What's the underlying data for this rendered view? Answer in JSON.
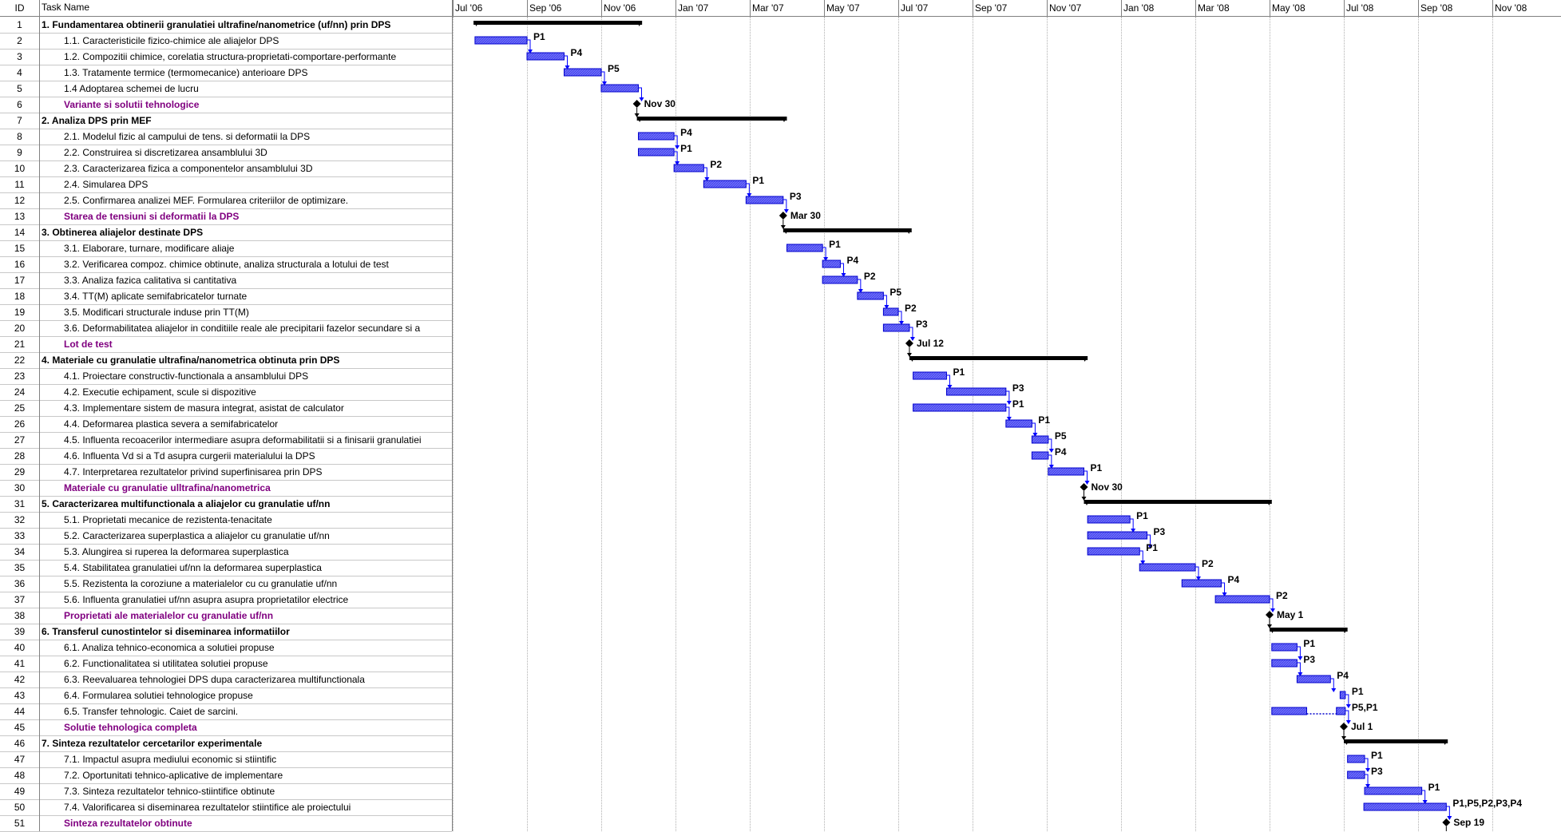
{
  "columns": {
    "id": "ID",
    "name": "Task Name"
  },
  "timeline": {
    "months": [
      "Jul '06",
      "Sep '06",
      "Nov '06",
      "Jan '07",
      "Mar '07",
      "May '07",
      "Jul '07",
      "Sep '07",
      "Nov '07",
      "Jan '08",
      "Mar '08",
      "May '08",
      "Jul '08",
      "Sep '08",
      "Nov '08"
    ]
  },
  "colors": {
    "bar": "#6b6bff",
    "barBorder": "#0000cc",
    "summary": "#000000",
    "milestoneText": "#800080",
    "link": "#0000ff"
  },
  "tasks": [
    {
      "id": "1",
      "name": "1. Fundamentarea obtinerii granulatiei ultrafine/nanometrice (uf/nn) prin DPS",
      "kind": "summary",
      "start": 0.28,
      "end": 2.55
    },
    {
      "id": "2",
      "name": "1.1. Caracteristicile fizico-chimice ale aliajelor DPS",
      "kind": "task",
      "start": 0.3,
      "end": 1.0,
      "label": "P1"
    },
    {
      "id": "3",
      "name": "1.2. Compozitii chimice, corelatia structura-proprietati-comportare-performante",
      "kind": "task",
      "start": 1.0,
      "end": 1.5,
      "label": "P4"
    },
    {
      "id": "4",
      "name": "1.3. Tratamente termice (termomecanice) anterioare DPS",
      "kind": "task",
      "start": 1.5,
      "end": 2.0,
      "label": "P5"
    },
    {
      "id": "5",
      "name": "1.4 Adoptarea schemei de lucru",
      "kind": "task",
      "start": 2.0,
      "end": 2.5,
      "label": ""
    },
    {
      "id": "6",
      "name": "Variante si solutii tehnologice",
      "kind": "milestone",
      "date": 2.48,
      "label": "Nov 30"
    },
    {
      "id": "7",
      "name": "2. Analiza DPS prin MEF",
      "kind": "summary",
      "start": 2.48,
      "end": 4.5
    },
    {
      "id": "8",
      "name": "2.1. Modelul fizic al campului de tens. si deformatii la DPS",
      "kind": "task",
      "start": 2.5,
      "end": 2.98,
      "label": "P4"
    },
    {
      "id": "9",
      "name": "2.2. Construirea si discretizarea ansamblului 3D",
      "kind": "task",
      "start": 2.5,
      "end": 2.98,
      "label": "P1"
    },
    {
      "id": "10",
      "name": "2.3. Caracterizarea fizica a componentelor ansamblului 3D",
      "kind": "task",
      "start": 2.98,
      "end": 3.38,
      "label": "P2"
    },
    {
      "id": "11",
      "name": "2.4. Simularea DPS",
      "kind": "task",
      "start": 3.38,
      "end": 3.95,
      "label": "P1"
    },
    {
      "id": "12",
      "name": "2.5. Confirmarea analizei MEF. Formularea criteriilor de optimizare.",
      "kind": "task",
      "start": 3.95,
      "end": 4.45,
      "label": "P3"
    },
    {
      "id": "13",
      "name": "Starea de tensiuni si deformatii la DPS",
      "kind": "milestone",
      "date": 4.45,
      "label": "Mar 30"
    },
    {
      "id": "14",
      "name": "3. Obtinerea aliajelor destinate DPS",
      "kind": "summary",
      "start": 4.45,
      "end": 6.18
    },
    {
      "id": "15",
      "name": "3.1. Elaborare, turnare, modificare aliaje",
      "kind": "task",
      "start": 4.5,
      "end": 4.98,
      "label": "P1"
    },
    {
      "id": "16",
      "name": "3.2. Verificarea compoz. chimice obtinute, analiza structurala a lotului de test",
      "kind": "task",
      "start": 4.98,
      "end": 5.22,
      "label": "P4"
    },
    {
      "id": "17",
      "name": "3.3. Analiza fazica calitativa si cantitativa",
      "kind": "task",
      "start": 4.98,
      "end": 5.45,
      "label": "P2"
    },
    {
      "id": "18",
      "name": "3.4. TT(M) aplicate semifabricatelor turnate",
      "kind": "task",
      "start": 5.45,
      "end": 5.8,
      "label": "P5"
    },
    {
      "id": "19",
      "name": "3.5. Modificari structurale induse prin TT(M)",
      "kind": "task",
      "start": 5.8,
      "end": 6.0,
      "label": "P2"
    },
    {
      "id": "20",
      "name": "3.6. Deformabilitatea aliajelor in conditiile reale ale precipitarii fazelor secundare si a",
      "kind": "task",
      "start": 5.8,
      "end": 6.15,
      "label": "P3"
    },
    {
      "id": "21",
      "name": "Lot de test",
      "kind": "milestone",
      "date": 6.15,
      "label": "Jul 12"
    },
    {
      "id": "22",
      "name": "4. Materiale cu granulatie ultrafina/nanometrica obtinuta prin DPS",
      "kind": "summary",
      "start": 6.15,
      "end": 8.55
    },
    {
      "id": "23",
      "name": "4.1. Proiectare constructiv-functionala a ansamblului DPS",
      "kind": "task",
      "start": 6.2,
      "end": 6.65,
      "label": "P1"
    },
    {
      "id": "24",
      "name": "4.2. Executie echipament, scule si dispozitive",
      "kind": "task",
      "start": 6.65,
      "end": 7.45,
      "label": "P3"
    },
    {
      "id": "25",
      "name": "4.3. Implementare sistem de masura integrat, asistat de calculator",
      "kind": "task",
      "start": 6.2,
      "end": 7.45,
      "label": "P1"
    },
    {
      "id": "26",
      "name": "4.4. Deformarea plastica severa a semifabricatelor",
      "kind": "task",
      "start": 7.45,
      "end": 7.8,
      "label": "P1"
    },
    {
      "id": "27",
      "name": "4.5. Influenta recoacerilor intermediare asupra deformabilitatii si a finisarii granulatiei",
      "kind": "task",
      "start": 7.8,
      "end": 8.02,
      "label": "P5"
    },
    {
      "id": "28",
      "name": "4.6. Influenta Vd si a Td asupra curgerii materialului la DPS",
      "kind": "task",
      "start": 7.8,
      "end": 8.02,
      "label": "P4"
    },
    {
      "id": "29",
      "name": "4.7. Interpretarea rezultatelor privind superfinisarea prin DPS",
      "kind": "task",
      "start": 8.02,
      "end": 8.5,
      "label": "P1"
    },
    {
      "id": "30",
      "name": "Materiale cu granulatie ulltrafina/nanometrica",
      "kind": "milestone",
      "date": 8.5,
      "label": "Nov 30"
    },
    {
      "id": "31",
      "name": "5. Caracterizarea multifunctionala a aliajelor cu granulatie uf/nn",
      "kind": "summary",
      "start": 8.5,
      "end": 11.03
    },
    {
      "id": "32",
      "name": "5.1. Proprietati mecanice de rezistenta-tenacitate",
      "kind": "task",
      "start": 8.55,
      "end": 9.12,
      "label": "P1"
    },
    {
      "id": "33",
      "name": "5.2. Caracterizarea superplastica a aliajelor cu granulatie uf/nn",
      "kind": "task",
      "start": 8.55,
      "end": 9.35,
      "label": "P3"
    },
    {
      "id": "34",
      "name": "5.3. Alungirea si ruperea la deformarea superplastica",
      "kind": "task",
      "start": 8.55,
      "end": 9.25,
      "label": "P1"
    },
    {
      "id": "35",
      "name": "5.4. Stabilitatea granulatiei uf/nn la deformarea superplastica",
      "kind": "task",
      "start": 9.25,
      "end": 10.0,
      "label": "P2"
    },
    {
      "id": "36",
      "name": "5.5. Rezistenta la coroziune a materialelor cu cu granulatie uf/nn",
      "kind": "task",
      "start": 9.82,
      "end": 10.35,
      "label": "P4"
    },
    {
      "id": "37",
      "name": "5.6. Influenta granulatiei uf/nn asupra asupra proprietatilor electrice",
      "kind": "task",
      "start": 10.27,
      "end": 11.0,
      "label": "P2"
    },
    {
      "id": "38",
      "name": "Proprietati ale materialelor cu granulatie uf/nn",
      "kind": "milestone",
      "date": 11.0,
      "label": "May 1"
    },
    {
      "id": "39",
      "name": "6. Transferul cunostintelor si diseminarea informatiilor",
      "kind": "summary",
      "start": 11.0,
      "end": 12.05
    },
    {
      "id": "40",
      "name": "6.1. Analiza tehnico-economica a solutiei propuse",
      "kind": "task",
      "start": 11.03,
      "end": 11.37,
      "label": "P1"
    },
    {
      "id": "41",
      "name": "6.2. Functionalitatea si utilitatea solutiei propuse",
      "kind": "task",
      "start": 11.03,
      "end": 11.37,
      "label": "P3"
    },
    {
      "id": "42",
      "name": "6.3. Reevaluarea tehnologiei DPS dupa caracterizarea multifunctionala",
      "kind": "task",
      "start": 11.37,
      "end": 11.82,
      "label": "P4"
    },
    {
      "id": "43",
      "name": "6.4. Formularea solutiei tehnologice propuse",
      "kind": "task",
      "start": 11.95,
      "end": 12.02,
      "label": "P1"
    },
    {
      "id": "44",
      "name": "6.5. Transfer tehnologic. Caiet de sarcini.",
      "kind": "task",
      "start": 11.03,
      "end": 11.5,
      "label": "P5,P1",
      "extra": [
        11.9,
        12.02
      ]
    },
    {
      "id": "45",
      "name": "Solutie tehnologica completa",
      "kind": "milestone",
      "date": 12.0,
      "label": "Jul 1"
    },
    {
      "id": "46",
      "name": "7. Sinteza rezultatelor cercetarilor experimentale",
      "kind": "summary",
      "start": 12.0,
      "end": 13.4
    },
    {
      "id": "47",
      "name": "7.1. Impactul asupra mediului economic si stiintific",
      "kind": "task",
      "start": 12.05,
      "end": 12.28,
      "label": "P1"
    },
    {
      "id": "48",
      "name": "7.2. Oportunitati tehnico-aplicative de implementare",
      "kind": "task",
      "start": 12.05,
      "end": 12.28,
      "label": "P3"
    },
    {
      "id": "49",
      "name": "7.3. Sinteza rezultatelor tehnico-stiintifice obtinute",
      "kind": "task",
      "start": 12.28,
      "end": 13.05,
      "label": "P1"
    },
    {
      "id": "50",
      "name": "7.4. Valorificarea si diseminarea rezultatelor stiintifice ale proiectului",
      "kind": "task",
      "start": 12.27,
      "end": 13.38,
      "label": "P1,P5,P2,P3,P4"
    },
    {
      "id": "51",
      "name": "Sinteza rezultatelor obtinute",
      "kind": "milestone",
      "date": 13.38,
      "label": "Sep 19"
    }
  ]
}
